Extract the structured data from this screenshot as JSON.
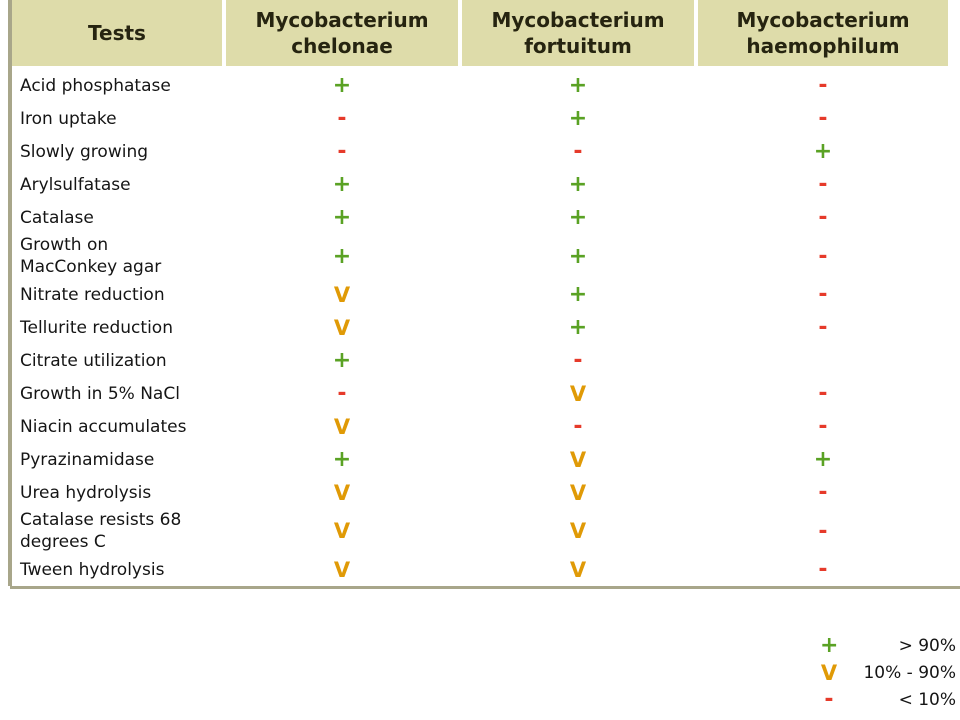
{
  "table": {
    "headers": [
      "Tests",
      "Mycobacterium\nchelonae",
      "Mycobacterium\nfortuitum",
      "Mycobacterium\nhaemophilum"
    ],
    "rows": [
      {
        "test": "Acid phosphatase",
        "values": [
          "+",
          "+",
          "-"
        ]
      },
      {
        "test": "Iron uptake",
        "values": [
          "-",
          "+",
          "-"
        ]
      },
      {
        "test": "Slowly growing",
        "values": [
          "-",
          "-",
          "+"
        ]
      },
      {
        "test": "Arylsulfatase",
        "values": [
          "+",
          "+",
          "-"
        ]
      },
      {
        "test": "Catalase",
        "values": [
          "+",
          "+",
          "-"
        ]
      },
      {
        "test": "Growth on MacConkey agar",
        "values": [
          "+",
          "+",
          "-"
        ]
      },
      {
        "test": "Nitrate reduction",
        "values": [
          "V",
          "+",
          "-"
        ]
      },
      {
        "test": "Tellurite reduction",
        "values": [
          "V",
          "+",
          "-"
        ]
      },
      {
        "test": "Citrate utilization",
        "values": [
          "+",
          "-",
          ""
        ]
      },
      {
        "test": "Growth in 5% NaCl",
        "values": [
          "-",
          "V",
          "-"
        ]
      },
      {
        "test": "Niacin accumulates",
        "values": [
          "V",
          "-",
          "-"
        ]
      },
      {
        "test": "Pyrazinamidase",
        "values": [
          "+",
          "V",
          "+"
        ]
      },
      {
        "test": "Urea hydrolysis",
        "values": [
          "V",
          "V",
          "-"
        ]
      },
      {
        "test": "Catalase resists 68 degrees C",
        "values": [
          "V",
          "V",
          "-"
        ]
      },
      {
        "test": "Tween hydrolysis",
        "values": [
          "V",
          "V",
          "-"
        ]
      }
    ]
  },
  "legend": [
    {
      "symbol": "+",
      "text": "> 90%"
    },
    {
      "symbol": "V",
      "text": "10% - 90%"
    },
    {
      "symbol": "-",
      "text": "< 10%"
    }
  ],
  "colors": {
    "header_bg": "#dedcaa",
    "plus": "#5aa224",
    "minus": "#e63a2a",
    "variable": "#e09a06",
    "frame": "#a8a68a"
  }
}
